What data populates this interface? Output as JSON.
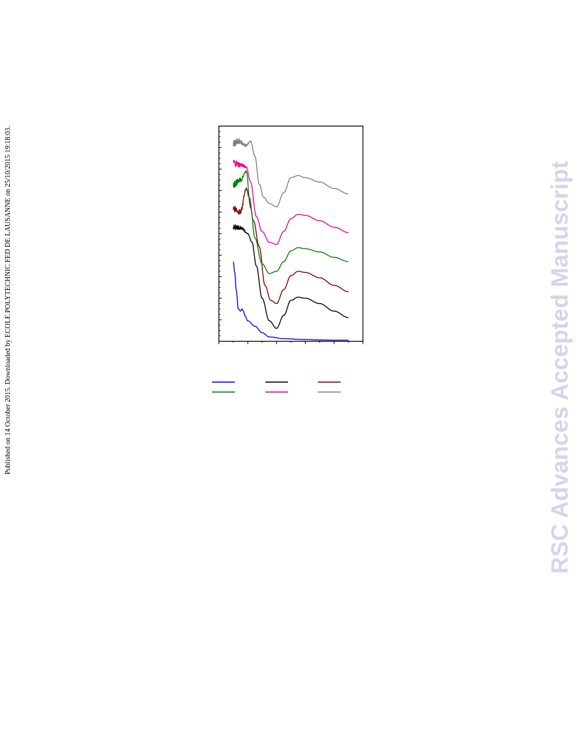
{
  "side_note": "Published on 14 October 2015. Downloaded by ECOLE POLYTECHNIC FED DE LAUSANNE on 25/10/2015 19:18:03.",
  "watermark": {
    "text": "RSC Advances Accepted Manuscript",
    "color": "#d4d4ea"
  },
  "chart_data": {
    "type": "line",
    "title": "",
    "xlabel": "",
    "ylabel": "",
    "xlim": [
      0,
      10
    ],
    "ylim": [
      0,
      10
    ],
    "grid": false,
    "legend": "bottom",
    "series": [
      {
        "color": "#0000ee",
        "noise": [
          [
            0,
            0
          ]
        ],
        "points": [
          [
            1.0,
            3.7
          ],
          [
            1.1,
            3.2
          ],
          [
            1.2,
            2.4
          ],
          [
            1.35,
            1.5
          ],
          [
            1.5,
            1.4
          ],
          [
            1.6,
            1.5
          ],
          [
            1.7,
            1.4
          ],
          [
            1.8,
            1.2
          ],
          [
            2.0,
            0.95
          ],
          [
            2.5,
            0.7
          ],
          [
            3.0,
            0.4
          ],
          [
            3.5,
            0.2
          ],
          [
            4.5,
            0.12
          ],
          [
            6,
            0.08
          ],
          [
            7,
            0.06
          ],
          [
            8,
            0.05
          ],
          [
            9,
            0.05
          ]
        ]
      },
      {
        "color": "#000000",
        "noise": [
          [
            1.0,
            0.18
          ],
          [
            2.1,
            0.0
          ]
        ],
        "points": [
          [
            1.0,
            5.3
          ],
          [
            1.5,
            5.3
          ],
          [
            2.0,
            5.0
          ],
          [
            2.3,
            4.6
          ],
          [
            2.6,
            3.5
          ],
          [
            3.0,
            2.0
          ],
          [
            3.5,
            0.95
          ],
          [
            4.0,
            0.6
          ],
          [
            4.5,
            1.2
          ],
          [
            5.0,
            1.9
          ],
          [
            5.5,
            2.05
          ],
          [
            6.0,
            2.0
          ],
          [
            7.0,
            1.75
          ],
          [
            8.0,
            1.4
          ],
          [
            9.0,
            1.1
          ]
        ]
      },
      {
        "color": "#800000",
        "noise": [
          [
            1.0,
            0.22
          ],
          [
            2.1,
            0.0
          ]
        ],
        "points": [
          [
            1.0,
            6.2
          ],
          [
            1.5,
            6.0
          ],
          [
            1.9,
            7.1
          ],
          [
            2.1,
            6.7
          ],
          [
            2.4,
            5.6
          ],
          [
            2.8,
            4.4
          ],
          [
            3.2,
            2.6
          ],
          [
            3.6,
            1.9
          ],
          [
            4.0,
            1.75
          ],
          [
            4.5,
            2.4
          ],
          [
            5.0,
            3.05
          ],
          [
            5.5,
            3.25
          ],
          [
            6.0,
            3.2
          ],
          [
            7.0,
            2.95
          ],
          [
            8.0,
            2.6
          ],
          [
            9.0,
            2.3
          ]
        ]
      },
      {
        "color": "#008000",
        "noise": [
          [
            1.0,
            0.22
          ],
          [
            2.0,
            0.0
          ]
        ],
        "points": [
          [
            1.0,
            7.3
          ],
          [
            1.5,
            7.5
          ],
          [
            1.9,
            7.9
          ],
          [
            2.2,
            6.2
          ],
          [
            2.5,
            4.8
          ],
          [
            3.0,
            3.6
          ],
          [
            3.5,
            3.15
          ],
          [
            4.0,
            3.25
          ],
          [
            4.5,
            3.7
          ],
          [
            5.0,
            4.2
          ],
          [
            5.5,
            4.35
          ],
          [
            6.0,
            4.3
          ],
          [
            7.0,
            4.15
          ],
          [
            8.0,
            3.9
          ],
          [
            9.0,
            3.7
          ]
        ]
      },
      {
        "color": "#ee0088",
        "noise": [
          [
            1.0,
            0.2
          ],
          [
            2.1,
            0.0
          ]
        ],
        "points": [
          [
            1.0,
            8.3
          ],
          [
            1.5,
            8.2
          ],
          [
            1.9,
            8.1
          ],
          [
            2.2,
            7.4
          ],
          [
            2.6,
            5.8
          ],
          [
            3.0,
            5.1
          ],
          [
            3.5,
            4.6
          ],
          [
            4.0,
            4.5
          ],
          [
            4.5,
            5.1
          ],
          [
            5.0,
            5.7
          ],
          [
            5.5,
            5.9
          ],
          [
            6.0,
            5.85
          ],
          [
            7.0,
            5.6
          ],
          [
            8.0,
            5.3
          ],
          [
            9.0,
            5.05
          ]
        ]
      },
      {
        "color": "#808080",
        "noise": [
          [
            1.0,
            0.18
          ],
          [
            2.3,
            0.0
          ]
        ],
        "points": [
          [
            1.0,
            9.2
          ],
          [
            1.4,
            9.3
          ],
          [
            1.9,
            9.1
          ],
          [
            2.2,
            9.3
          ],
          [
            2.5,
            8.6
          ],
          [
            2.8,
            7.3
          ],
          [
            3.1,
            6.7
          ],
          [
            3.5,
            6.4
          ],
          [
            4.0,
            6.25
          ],
          [
            4.5,
            6.9
          ],
          [
            5.0,
            7.6
          ],
          [
            5.5,
            7.7
          ],
          [
            6.0,
            7.6
          ],
          [
            7.0,
            7.4
          ],
          [
            8.0,
            7.1
          ],
          [
            9.0,
            6.85
          ]
        ]
      }
    ]
  }
}
